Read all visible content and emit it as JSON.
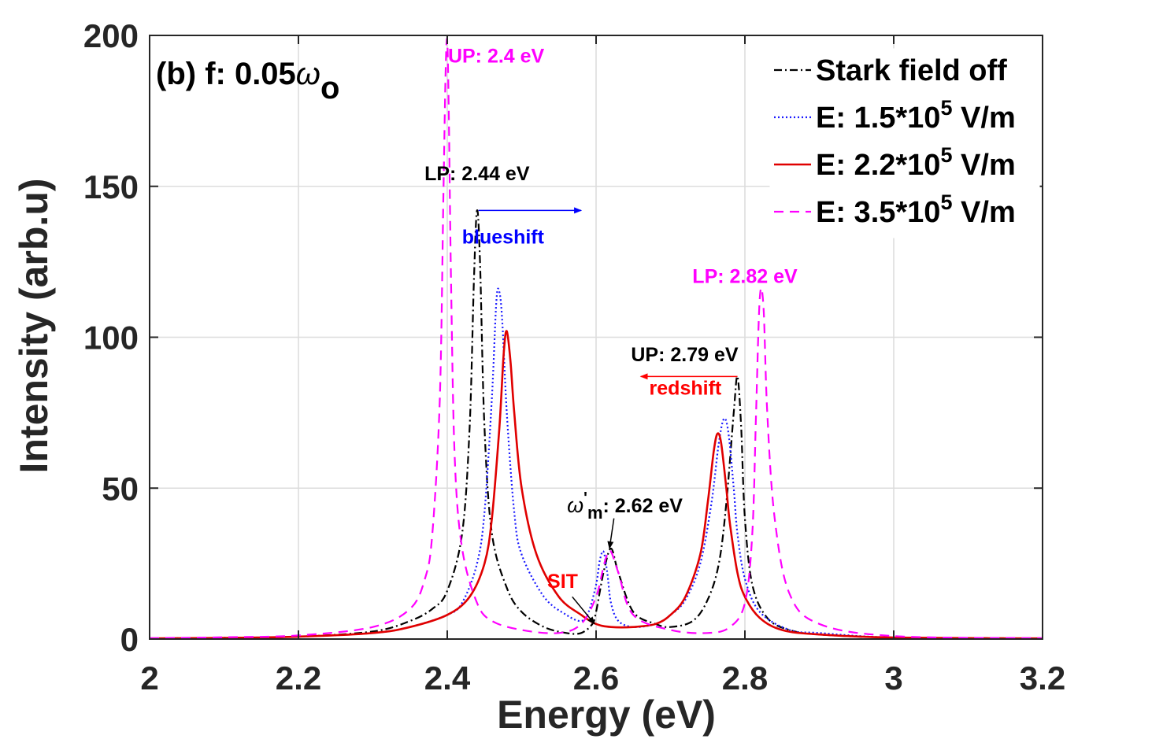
{
  "chart_data": {
    "type": "line",
    "panel_label": "(b) f: 0.05",
    "panel_symbol": "ω",
    "panel_subscript": "o",
    "xlabel": "Energy (eV)",
    "ylabel": "Intensity (arb.u)",
    "xlim": [
      2,
      3.2
    ],
    "ylim": [
      0,
      200
    ],
    "grid": true,
    "legend_position": "top-right",
    "x_ticks": [
      2,
      2.2,
      2.4,
      2.6,
      2.8,
      3,
      3.2
    ],
    "x_tick_labels": [
      "2",
      "2.2",
      "2.4",
      "2.6",
      "2.8",
      "3",
      "3.2"
    ],
    "y_ticks": [
      0,
      50,
      100,
      150,
      200
    ],
    "y_tick_labels": [
      "0",
      "50",
      "100",
      "150",
      "200"
    ],
    "series": [
      {
        "name": "Stark field off",
        "legend_main": "Stark field off",
        "legend_exp": "",
        "legend_tail": "",
        "color": "#000000",
        "style": "dashdot",
        "x": [
          2.0,
          2.1,
          2.2,
          2.3,
          2.35,
          2.38,
          2.4,
          2.42,
          2.43,
          2.436,
          2.44,
          2.444,
          2.45,
          2.46,
          2.48,
          2.5,
          2.53,
          2.56,
          2.58,
          2.595,
          2.6,
          2.61,
          2.62,
          2.63,
          2.65,
          2.68,
          2.7,
          2.73,
          2.75,
          2.765,
          2.775,
          2.785,
          2.79,
          2.795,
          2.8,
          2.81,
          2.83,
          2.86,
          2.9,
          3.0,
          3.2
        ],
        "y": [
          0.2,
          0.4,
          0.8,
          2.5,
          6,
          10,
          16,
          35,
          70,
          120,
          142,
          125,
          70,
          35,
          17,
          9,
          4,
          2,
          2,
          5,
          9,
          22,
          30,
          22,
          9,
          5,
          4,
          6,
          13,
          25,
          45,
          75,
          87,
          70,
          40,
          18,
          7,
          3,
          1.5,
          0.5,
          0.2
        ]
      },
      {
        "name": "E: 1.5*10^5 V/m",
        "legend_main": "E: 1.5*10",
        "legend_exp": "5",
        "legend_tail": " V/m",
        "color": "#1a1aff",
        "style": "dotted",
        "x": [
          2.0,
          2.1,
          2.2,
          2.3,
          2.35,
          2.4,
          2.42,
          2.44,
          2.45,
          2.46,
          2.466,
          2.47,
          2.474,
          2.48,
          2.49,
          2.5,
          2.53,
          2.56,
          2.58,
          2.59,
          2.6,
          2.605,
          2.61,
          2.615,
          2.62,
          2.63,
          2.65,
          2.68,
          2.7,
          2.72,
          2.74,
          2.755,
          2.765,
          2.772,
          2.778,
          2.785,
          2.79,
          2.8,
          2.82,
          2.86,
          2.9,
          3.0,
          3.2
        ],
        "y": [
          0.2,
          0.4,
          0.8,
          2,
          4,
          8,
          12,
          25,
          42,
          80,
          112,
          115,
          105,
          75,
          42,
          28,
          14,
          8,
          6,
          9,
          18,
          26,
          29,
          22,
          12,
          6,
          4,
          5,
          8,
          13,
          25,
          45,
          65,
          73,
          68,
          50,
          35,
          20,
          9,
          3,
          2,
          0.5,
          0.2
        ]
      },
      {
        "name": "E: 2.2*10^5 V/m",
        "legend_main": "E: 2.2*10",
        "legend_exp": "5",
        "legend_tail": " V/m",
        "color": "#e00000",
        "style": "solid",
        "x": [
          2.0,
          2.1,
          2.2,
          2.3,
          2.35,
          2.4,
          2.43,
          2.45,
          2.46,
          2.47,
          2.476,
          2.48,
          2.485,
          2.49,
          2.5,
          2.52,
          2.55,
          2.58,
          2.6,
          2.62,
          2.65,
          2.68,
          2.7,
          2.72,
          2.74,
          2.75,
          2.758,
          2.763,
          2.768,
          2.775,
          2.78,
          2.79,
          2.8,
          2.82,
          2.85,
          2.9,
          3.0,
          3.2
        ],
        "y": [
          0.2,
          0.4,
          0.8,
          2,
          4,
          8,
          14,
          25,
          40,
          70,
          95,
          102,
          92,
          75,
          50,
          28,
          14,
          8,
          5,
          4,
          4,
          5,
          8,
          14,
          28,
          45,
          62,
          68,
          65,
          50,
          38,
          22,
          14,
          7,
          3,
          1.5,
          0.5,
          0.2
        ]
      },
      {
        "name": "E: 3.5*10^5 V/m",
        "legend_main": "E: 3.5*10",
        "legend_exp": "5",
        "legend_tail": " V/m",
        "color": "#ff00ff",
        "style": "dashed",
        "x": [
          2.0,
          2.1,
          2.2,
          2.3,
          2.35,
          2.37,
          2.38,
          2.39,
          2.395,
          2.398,
          2.4,
          2.402,
          2.405,
          2.41,
          2.42,
          2.44,
          2.46,
          2.5,
          2.55,
          2.58,
          2.6,
          2.61,
          2.615,
          2.62,
          2.63,
          2.65,
          2.7,
          2.75,
          2.78,
          2.8,
          2.81,
          2.815,
          2.82,
          2.825,
          2.83,
          2.84,
          2.86,
          2.9,
          3.0,
          3.2
        ],
        "y": [
          0.3,
          0.6,
          1.2,
          4,
          10,
          20,
          35,
          80,
          150,
          190,
          198,
          175,
          120,
          60,
          30,
          12,
          6,
          3,
          2,
          5,
          14,
          24,
          28,
          29,
          22,
          8,
          3,
          2,
          4,
          12,
          35,
          75,
          113,
          110,
          75,
          40,
          15,
          5,
          1,
          0.3
        ]
      }
    ],
    "annotations": [
      {
        "id": "up24",
        "text": "UP: 2.4 eV",
        "x": 2.401,
        "y": 191,
        "anchor": "start",
        "color": "#ff00ff"
      },
      {
        "id": "lp244",
        "text": "LP: 2.44 eV",
        "x": 2.44,
        "y": 152,
        "anchor": "middle",
        "color": "#000000"
      },
      {
        "id": "blueshift",
        "text": "blueshift",
        "x": 2.475,
        "y": 131,
        "anchor": "middle",
        "color": "#0000ff"
      },
      {
        "id": "lp282",
        "text": "LP: 2.82 eV",
        "x": 2.8,
        "y": 118,
        "anchor": "middle",
        "color": "#ff00ff"
      },
      {
        "id": "up279",
        "text": "UP: 2.79 eV",
        "x": 2.719,
        "y": 92,
        "anchor": "middle",
        "color": "#000000"
      },
      {
        "id": "redshift",
        "text": "redshift",
        "x": 2.72,
        "y": 81,
        "anchor": "middle",
        "color": "#ff0000"
      },
      {
        "id": "sit",
        "text": "SIT",
        "x": 2.555,
        "y": 17,
        "anchor": "middle",
        "color": "#ff0000"
      }
    ],
    "omega_label": {
      "symbol": "ω",
      "prime": "'",
      "subscript": "m",
      "text": ": 2.62 eV",
      "x": 2.561,
      "y": 42
    },
    "arrows": [
      {
        "id": "blueshift-arrow",
        "x1": 2.442,
        "y1": 142,
        "x2": 2.58,
        "y2": 142,
        "color": "#0000ff"
      },
      {
        "id": "redshift-arrow",
        "x1": 2.79,
        "y1": 87,
        "x2": 2.66,
        "y2": 87,
        "color": "#ff0000"
      },
      {
        "id": "omega-arrow",
        "x1": 2.624,
        "y1": 40,
        "x2": 2.618,
        "y2": 30,
        "color": "#000000"
      },
      {
        "id": "sit-arrow",
        "x1": 2.568,
        "y1": 14,
        "x2": 2.598,
        "y2": 5,
        "color": "#000000"
      }
    ]
  }
}
